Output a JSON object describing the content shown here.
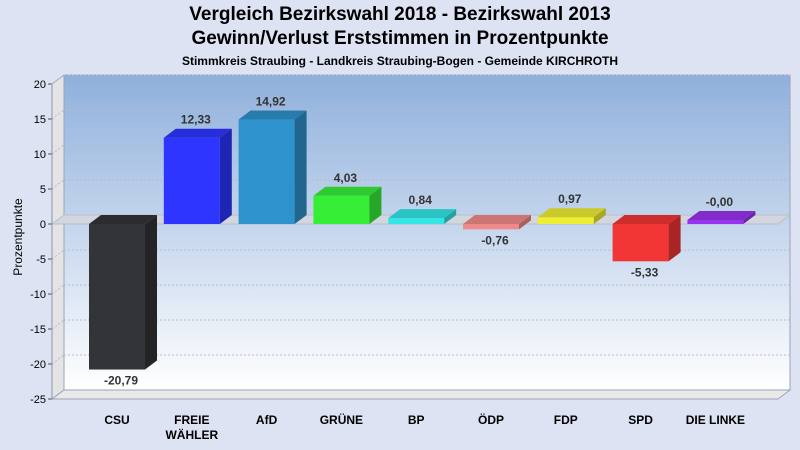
{
  "header": {
    "title_line1": "Vergleich Bezirkswahl 2018 - Bezirkswahl 2013",
    "title_line2": "Gewinn/Verlust Erststimmen in Prozentpunkte",
    "subtitle": "Stimmkreis Straubing - Landkreis Straubing-Bogen - Gemeinde KIRCHROTH"
  },
  "chart_data": {
    "type": "bar",
    "title": "Vergleich Bezirkswahl 2018 - Bezirkswahl 2013 / Gewinn/Verlust Erststimmen in Prozentpunkte",
    "ylabel": "Prozentpunkte",
    "xlabel": "",
    "ylim": [
      -25,
      20
    ],
    "yticks": [
      20,
      15,
      10,
      5,
      0,
      -5,
      -10,
      -15,
      -20,
      -25
    ],
    "grid": true,
    "categories": [
      [
        "CSU"
      ],
      [
        "FREIE",
        "WÄHLER"
      ],
      [
        "AfD"
      ],
      [
        "GRÜNE"
      ],
      [
        "BP"
      ],
      [
        "ÖDP"
      ],
      [
        "FDP"
      ],
      [
        "SPD"
      ],
      [
        "DIE LINKE"
      ]
    ],
    "values": [
      -20.79,
      12.33,
      14.92,
      4.03,
      0.84,
      -0.76,
      0.97,
      -5.33,
      -0.0
    ],
    "value_labels": [
      "-20,79",
      "12,33",
      "14,92",
      "4,03",
      "0,84",
      "-0,76",
      "0,97",
      "-5,33",
      "-0,00"
    ],
    "colors": [
      "#333438",
      "#2d35ff",
      "#2e92cc",
      "#37ee37",
      "#33e6e6",
      "#f08a8a",
      "#eeee33",
      "#f23535",
      "#9a33ee"
    ]
  }
}
